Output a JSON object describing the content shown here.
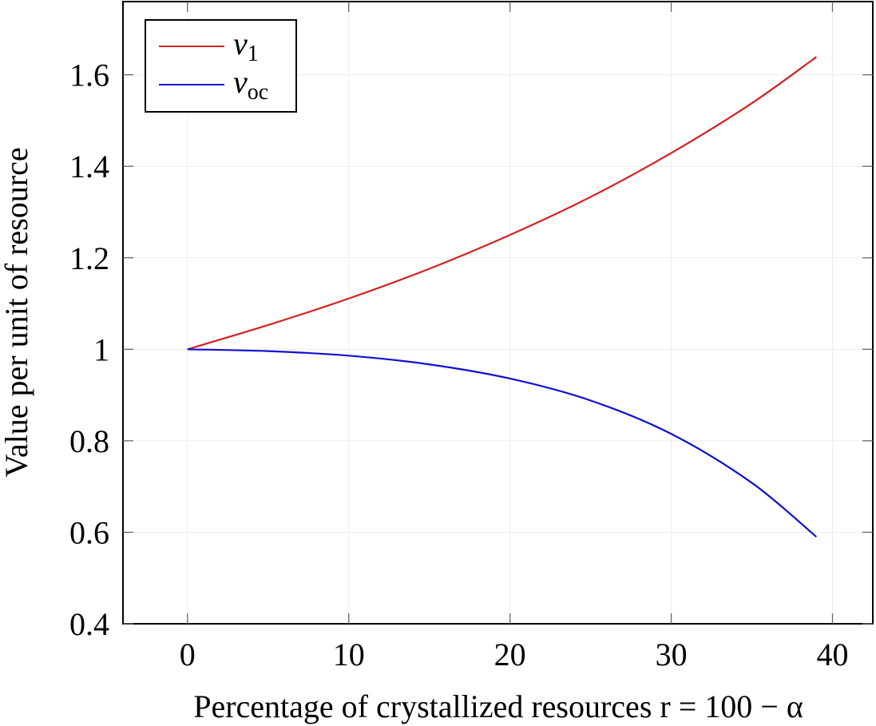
{
  "chart_data": {
    "type": "line",
    "title": "",
    "xlabel": "Percentage of crystallized resources r = 100 − α",
    "ylabel": "Value per unit of resource",
    "xlim": [
      -4,
      42.5
    ],
    "ylim": [
      0.4,
      1.76
    ],
    "xticks": [
      0,
      10,
      20,
      30,
      40
    ],
    "yticks": [
      0.4,
      0.6,
      0.8,
      1.0,
      1.2,
      1.4,
      1.6
    ],
    "xtick_labels": [
      "0",
      "10",
      "20",
      "30",
      "40"
    ],
    "ytick_labels": [
      "0.4",
      "0.6",
      "0.8",
      "1",
      "1.2",
      "1.4",
      "1.6"
    ],
    "grid": true,
    "legend_position": "top-left",
    "series": [
      {
        "name": "v1",
        "name_main": "v",
        "name_sub": "1",
        "color": "#d62020",
        "x": [
          0,
          5,
          10,
          15,
          20,
          25,
          30,
          35,
          39
        ],
        "y": [
          1.0,
          1.053,
          1.111,
          1.176,
          1.25,
          1.333,
          1.429,
          1.538,
          1.639
        ]
      },
      {
        "name": "voc",
        "name_main": "v",
        "name_sub": "oc",
        "color": "#1010d0",
        "x": [
          0,
          5,
          10,
          15,
          20,
          25,
          30,
          35,
          39
        ],
        "y": [
          1.0,
          0.996,
          0.986,
          0.967,
          0.936,
          0.888,
          0.815,
          0.708,
          0.59
        ]
      }
    ]
  }
}
